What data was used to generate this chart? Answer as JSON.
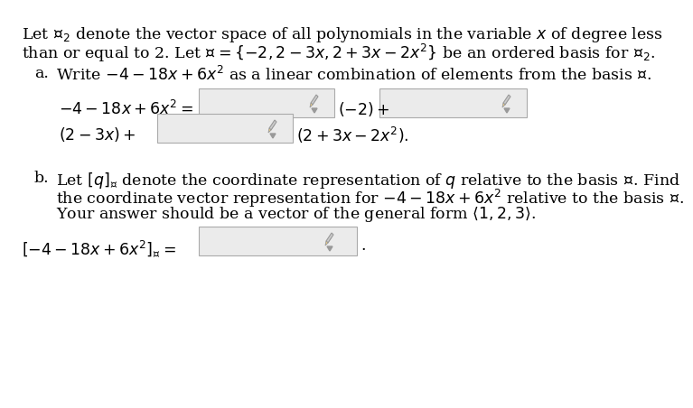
{
  "bg_color": "#ffffff",
  "text_color": "#000000",
  "box_facecolor": "#ebebeb",
  "box_edgecolor": "#aaaaaa",
  "pencil_color": "#999999",
  "line1": "Let $\\mathcal{P}_2$ denote the vector space of all polynomials in the variable $x$ of degree less",
  "line2": "than or equal to 2. Let $\\mathcal{C} = \\{-2, 2-3x, 2+3x-2x^2\\}$ be an ordered basis for $\\mathcal{P}_2$.",
  "part_a_label": "a.",
  "part_a_text": "Write $-4-18x+6x^2$ as a linear combination of elements from the basis $\\mathcal{C}$.",
  "eq1_lhs": "$-4-18x+6x^2 =$",
  "eq1_mid": "$(-2)+$",
  "eq2_lhs": "$(2-3x)+$",
  "eq2_end": "$(2+3x-2x^2).$",
  "part_b_label": "b.",
  "part_b_line1": "Let $[q]_\\mathcal{C}$ denote the coordinate representation of $q$ relative to the basis $\\mathcal{C}$. Find",
  "part_b_line2": "the coordinate vector representation for $-4-18x+6x^2$ relative to the basis $\\mathcal{C}$.",
  "part_b_line3": "Your answer should be a vector of the general form $\\langle 1,2,3\\rangle$.",
  "part_b_eq": "$[-4-18x+6x^2]_\\mathcal{C} =$",
  "period": ".",
  "fs_main": 12.5
}
